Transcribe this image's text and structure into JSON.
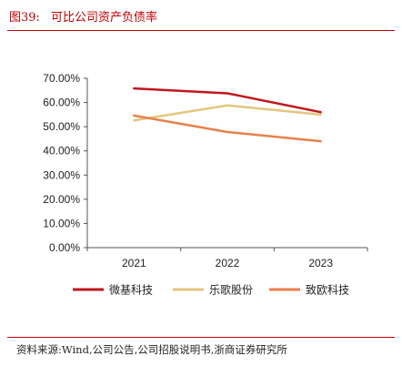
{
  "figure": {
    "number": "图39:",
    "title": "可比公司资产负债率",
    "source": "资料来源:Wind,公司公告,公司招股说明书,浙商证券研究所"
  },
  "chart_data": {
    "type": "line",
    "title": "",
    "xlabel": "",
    "ylabel": "",
    "categories": [
      "2021",
      "2022",
      "2023"
    ],
    "ylim": [
      0,
      70
    ],
    "yticks": [
      "0.00%",
      "10.00%",
      "20.00%",
      "30.00%",
      "40.00%",
      "50.00%",
      "60.00%",
      "70.00%"
    ],
    "grid": false,
    "legend_position": "bottom",
    "series": [
      {
        "name": "微基科技",
        "color": "#c0171c",
        "values": [
          65.8,
          63.8,
          56.0
        ]
      },
      {
        "name": "乐歌股份",
        "color": "#e3c67e",
        "values": [
          52.6,
          58.8,
          55.0
        ]
      },
      {
        "name": "致欧科技",
        "color": "#e8804a",
        "values": [
          54.6,
          47.8,
          44.0
        ]
      }
    ]
  }
}
